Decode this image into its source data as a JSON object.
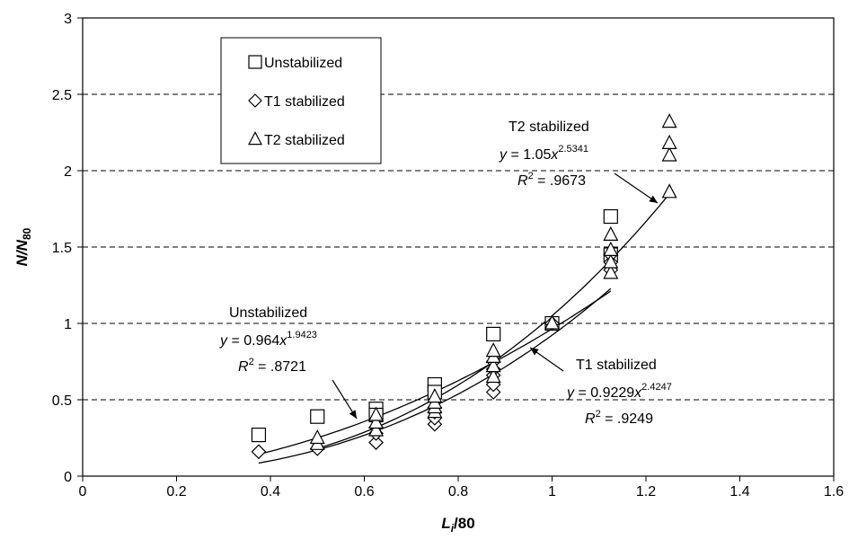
{
  "chart_data": {
    "type": "scatter",
    "xlabel": "",
    "ylabel": "",
    "xlabel_parts": [
      "L",
      "i",
      "/80"
    ],
    "ylabel_parts": [
      "N/N",
      "80"
    ],
    "xlim": [
      0,
      1.6
    ],
    "ylim": [
      0,
      3
    ],
    "xticks": [
      0,
      0.2,
      0.4,
      0.6,
      0.8,
      1,
      1.2,
      1.4,
      1.6
    ],
    "xtick_labels": [
      "0",
      "0.2",
      "0.4",
      "0.6",
      "0.8",
      "1",
      "1.2",
      "1.4",
      "1.6"
    ],
    "yticks": [
      0,
      0.5,
      1,
      1.5,
      2,
      2.5,
      3
    ],
    "ytick_labels": [
      "0",
      "0.5",
      "1",
      "1.5",
      "2",
      "2.5",
      "3"
    ],
    "grid": "horizontal-dashed",
    "legend_position": "top-left",
    "series": [
      {
        "name": "Unstabilized",
        "marker": "square",
        "x": [
          0.375,
          0.5,
          0.625,
          0.625,
          0.75,
          0.75,
          0.875,
          1.0,
          1.125,
          1.125
        ],
        "y": [
          0.27,
          0.39,
          0.44,
          0.4,
          0.6,
          0.55,
          0.93,
          1.0,
          1.7,
          1.45
        ],
        "fit": {
          "a": 0.964,
          "b": 1.9423,
          "range": [
            0.375,
            1.125
          ]
        }
      },
      {
        "name": "T1 stabilized",
        "marker": "diamond",
        "x": [
          0.375,
          0.5,
          0.625,
          0.625,
          0.625,
          0.75,
          0.75,
          0.75,
          0.75,
          0.875,
          0.875,
          0.875,
          0.875,
          0.875,
          1.0,
          1.125,
          1.125,
          1.125
        ],
        "y": [
          0.16,
          0.18,
          0.22,
          0.28,
          0.32,
          0.34,
          0.38,
          0.42,
          0.45,
          0.55,
          0.6,
          0.66,
          0.7,
          0.75,
          1.0,
          1.35,
          1.4,
          1.45
        ],
        "fit": {
          "a": 0.9229,
          "b": 2.4247,
          "range": [
            0.375,
            1.125
          ]
        }
      },
      {
        "name": "T2 stabilized",
        "marker": "triangle",
        "x": [
          0.5,
          0.5,
          0.625,
          0.625,
          0.625,
          0.75,
          0.75,
          0.75,
          0.75,
          0.875,
          0.875,
          0.875,
          0.875,
          1.0,
          1.125,
          1.125,
          1.125,
          1.125,
          1.25,
          1.25,
          1.25,
          1.25
        ],
        "y": [
          0.21,
          0.25,
          0.3,
          0.35,
          0.4,
          0.42,
          0.45,
          0.48,
          0.52,
          0.65,
          0.72,
          0.78,
          0.82,
          1.0,
          1.33,
          1.4,
          1.48,
          1.58,
          1.86,
          2.1,
          2.18,
          2.32
        ],
        "fit": {
          "a": 1.05,
          "b": 2.5341,
          "range": [
            0.5,
            1.25
          ]
        }
      }
    ],
    "annotations": [
      {
        "id": "unstab",
        "title": "Unstabilized",
        "eq_prefix": "y = 0.964x",
        "eq_exp": "1.9423",
        "r2_value": "= .8721"
      },
      {
        "id": "t1",
        "title": "T1 stabilized",
        "eq_prefix": "y = 0.9229x",
        "eq_exp": "2.4247",
        "r2_value": "= .9249"
      },
      {
        "id": "t2",
        "title": "T2 stabilized",
        "eq_prefix": "y = 1.05x",
        "eq_exp": "2.5341",
        "r2_value": "= .9673"
      }
    ],
    "legend": [
      {
        "marker": "square",
        "label": "Unstabilized"
      },
      {
        "marker": "diamond",
        "label": "T1 stabilized"
      },
      {
        "marker": "triangle",
        "label": "T2 stabilized"
      }
    ],
    "r2_prefix": "R",
    "r2_exp": "2"
  }
}
